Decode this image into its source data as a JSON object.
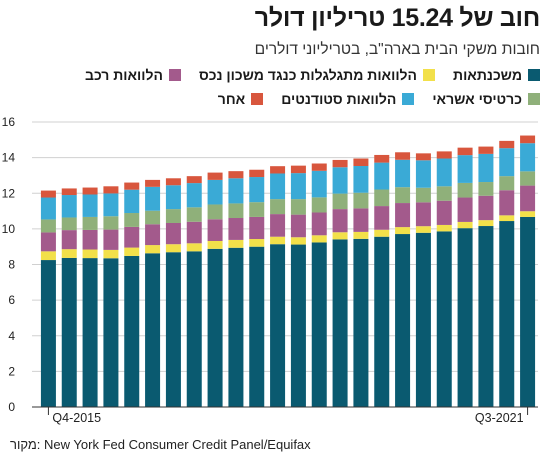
{
  "title": "חוב של 15.24 טריליון דולר",
  "subtitle": "חובות משקי הבית בארה\"ב, בטריליוני דולרים",
  "source": "New York Fed Consumer Credit Panel/Equifax :מקור",
  "legend_rows": [
    [
      {
        "name": "משכנתאות",
        "color": "#0a5a70"
      },
      {
        "name": "הלוואות מתגלגלות כנגד משכון נכס",
        "color": "#f2e04a"
      },
      {
        "name": "הלוואות רכב",
        "color": "#a35a8c"
      }
    ],
    [
      {
        "name": "כרטיסי אשראי",
        "color": "#8fb07a"
      },
      {
        "name": "הלוואות סטודנטים",
        "color": "#3aaad6"
      },
      {
        "name": "אחר",
        "color": "#d8563d"
      }
    ]
  ],
  "chart_data": {
    "type": "bar",
    "stacked": true,
    "ylim": [
      0,
      16
    ],
    "yticks": [
      0,
      2,
      4,
      6,
      8,
      10,
      12,
      14,
      16
    ],
    "x_labels": {
      "first": "Q4-2015",
      "last": "Q3-2021"
    },
    "grid": true,
    "categories": [
      "Q4-2015",
      "Q1-2016",
      "Q2-2016",
      "Q3-2016",
      "Q4-2016",
      "Q1-2017",
      "Q2-2017",
      "Q3-2017",
      "Q4-2017",
      "Q1-2018",
      "Q2-2018",
      "Q3-2018",
      "Q4-2018",
      "Q1-2019",
      "Q2-2019",
      "Q3-2019",
      "Q4-2019",
      "Q1-2020",
      "Q2-2020",
      "Q3-2020",
      "Q4-2020",
      "Q1-2021",
      "Q2-2021",
      "Q3-2021"
    ],
    "series": [
      {
        "name": "משכנתאות",
        "color": "#0a5a70",
        "values": [
          8.25,
          8.37,
          8.36,
          8.35,
          8.48,
          8.63,
          8.69,
          8.74,
          8.88,
          8.94,
          9.0,
          9.14,
          9.12,
          9.24,
          9.41,
          9.44,
          9.56,
          9.71,
          9.78,
          9.86,
          10.04,
          10.16,
          10.44,
          10.67
        ]
      },
      {
        "name": "הלוואות מתגלגלות כנגד משכון נכס",
        "color": "#f2e04a",
        "values": [
          0.49,
          0.49,
          0.48,
          0.47,
          0.47,
          0.46,
          0.45,
          0.45,
          0.44,
          0.44,
          0.43,
          0.42,
          0.41,
          0.4,
          0.4,
          0.39,
          0.39,
          0.39,
          0.37,
          0.36,
          0.35,
          0.33,
          0.32,
          0.32
        ]
      },
      {
        "name": "הלוואות רכב",
        "color": "#a35a8c",
        "values": [
          1.06,
          1.07,
          1.1,
          1.14,
          1.16,
          1.17,
          1.19,
          1.21,
          1.22,
          1.23,
          1.24,
          1.27,
          1.27,
          1.28,
          1.3,
          1.32,
          1.33,
          1.35,
          1.34,
          1.36,
          1.37,
          1.37,
          1.41,
          1.44
        ]
      },
      {
        "name": "כרטיסי אשראי",
        "color": "#8fb07a",
        "values": [
          0.73,
          0.71,
          0.73,
          0.75,
          0.78,
          0.76,
          0.78,
          0.81,
          0.83,
          0.82,
          0.83,
          0.84,
          0.87,
          0.85,
          0.87,
          0.88,
          0.93,
          0.89,
          0.82,
          0.81,
          0.82,
          0.77,
          0.79,
          0.8
        ]
      },
      {
        "name": "הלוואות סטודנטים",
        "color": "#3aaad6",
        "values": [
          1.23,
          1.26,
          1.26,
          1.28,
          1.31,
          1.34,
          1.34,
          1.36,
          1.38,
          1.41,
          1.41,
          1.44,
          1.46,
          1.49,
          1.48,
          1.5,
          1.51,
          1.54,
          1.54,
          1.56,
          1.56,
          1.58,
          1.57,
          1.58
        ]
      },
      {
        "name": "אחר",
        "color": "#d8563d",
        "values": [
          0.39,
          0.37,
          0.39,
          0.4,
          0.4,
          0.39,
          0.39,
          0.39,
          0.41,
          0.4,
          0.41,
          0.41,
          0.42,
          0.41,
          0.41,
          0.42,
          0.43,
          0.42,
          0.39,
          0.4,
          0.42,
          0.41,
          0.41,
          0.43
        ]
      }
    ]
  }
}
